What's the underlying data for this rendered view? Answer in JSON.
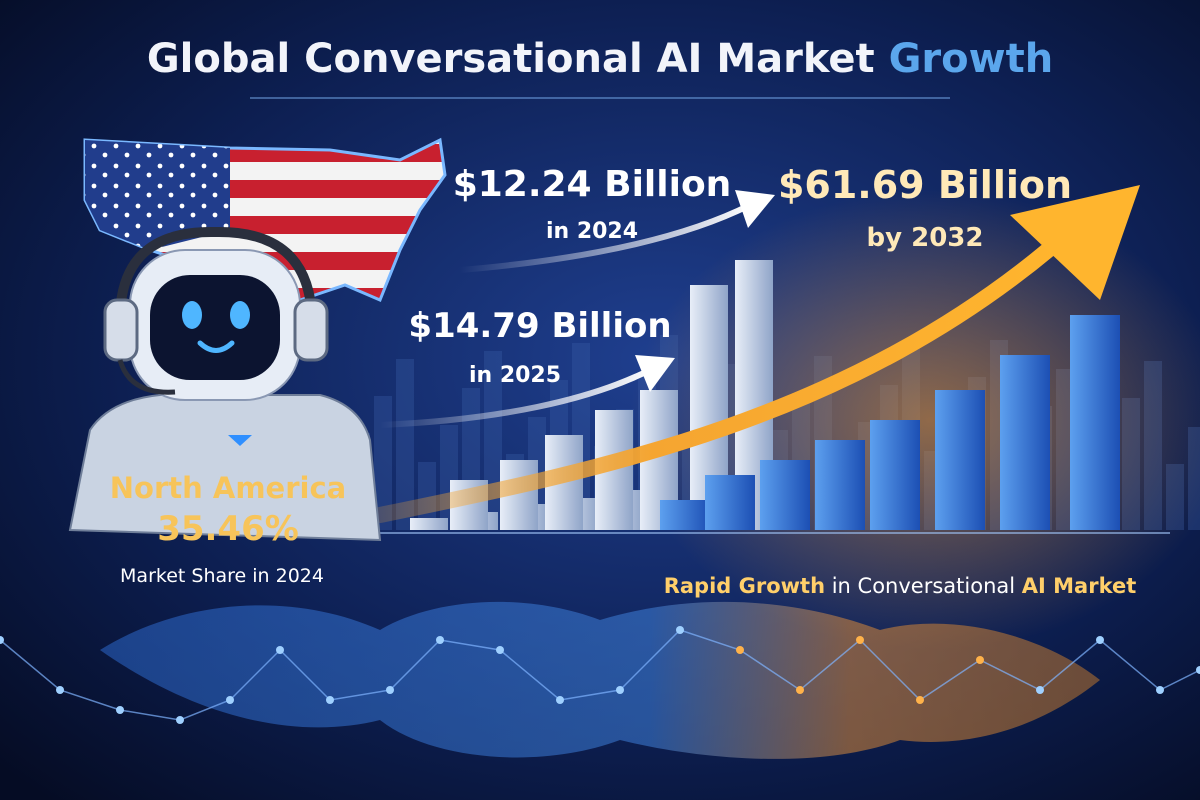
{
  "title": {
    "main": "Global Conversational AI Market",
    "accent": "Growth"
  },
  "stats": [
    {
      "value": "$12.24 Billion",
      "caption": "in 2024"
    },
    {
      "value": "$14.79 Billion",
      "caption": "in 2025"
    },
    {
      "value": "$61.69 Billion",
      "caption": "by 2032"
    }
  ],
  "region": {
    "name": "North America",
    "share": "35.46%",
    "caption": "Market Share in 2024"
  },
  "tagline": {
    "lead": "Rapid Growth",
    "middle": "in Conversational",
    "accent": "AI Market"
  }
}
